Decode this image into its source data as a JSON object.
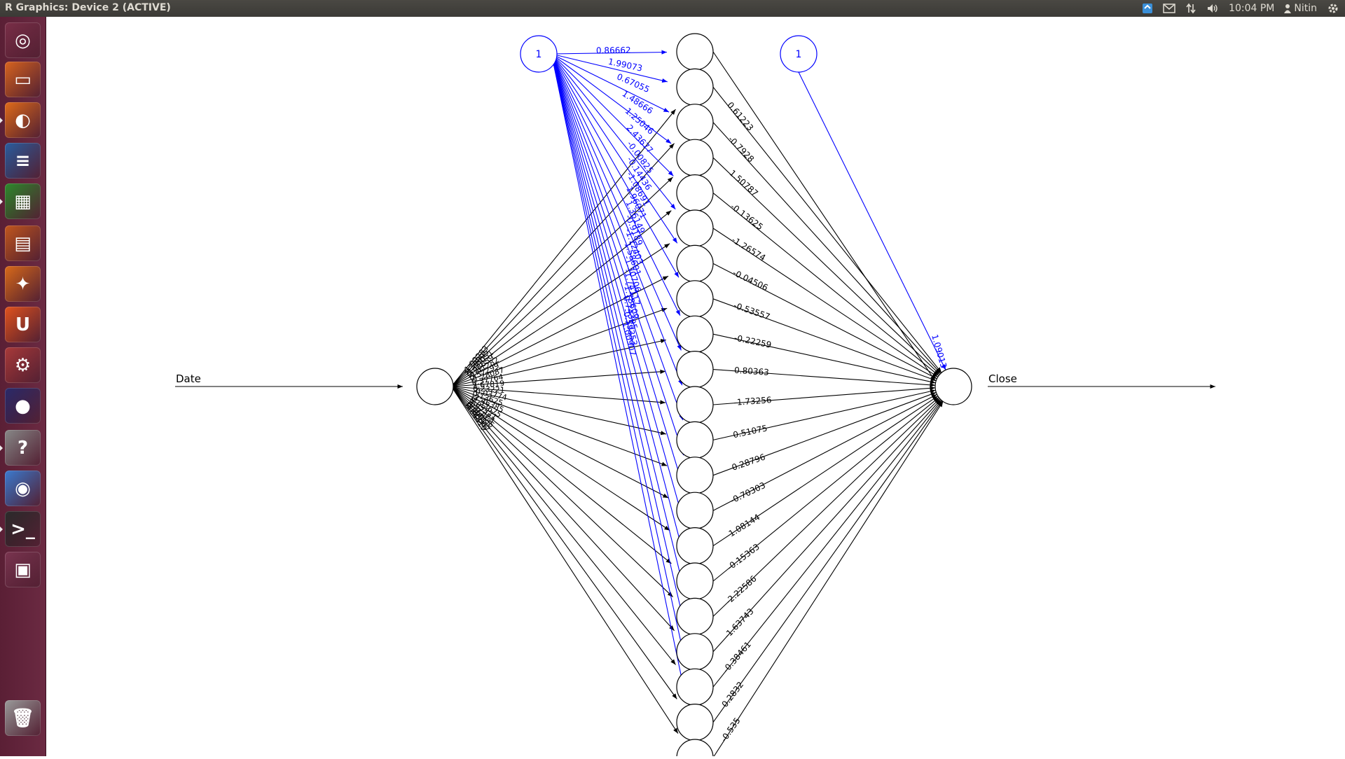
{
  "window": {
    "title": "R Graphics: Device 2 (ACTIVE)"
  },
  "tray": {
    "time": "10:04 PM",
    "user": "Nitin"
  },
  "launcher": [
    {
      "name": "dash-home-icon",
      "color": "#7a2f48",
      "glyph": "◎"
    },
    {
      "name": "files-icon",
      "color": "#d8641f",
      "glyph": "▭"
    },
    {
      "name": "firefox-icon",
      "color": "#e06b1a",
      "glyph": "◐"
    },
    {
      "name": "writer-icon",
      "color": "#2a5d9f",
      "glyph": "≡"
    },
    {
      "name": "calc-icon",
      "color": "#2c8a2c",
      "glyph": "▦"
    },
    {
      "name": "impress-icon",
      "color": "#c2571e",
      "glyph": "▤"
    },
    {
      "name": "software-center-icon",
      "color": "#d96a1a",
      "glyph": "✦"
    },
    {
      "name": "ubuntu-one-icon",
      "color": "#e2531e",
      "glyph": "U"
    },
    {
      "name": "system-settings-icon",
      "color": "#a93a3a",
      "glyph": "⚙"
    },
    {
      "name": "eclipse-icon",
      "color": "#2a2a6a",
      "glyph": "●"
    },
    {
      "name": "help-icon",
      "color": "#888888",
      "glyph": "?"
    },
    {
      "name": "chromium-icon",
      "color": "#3c7bd0",
      "glyph": "◉"
    },
    {
      "name": "terminal-icon",
      "color": "#2b2b2b",
      "glyph": ">_"
    },
    {
      "name": "workspace-switcher-icon",
      "color": "#7a3550",
      "glyph": "▣"
    },
    {
      "name": "trash-icon",
      "color": "#9a9a9a",
      "glyph": "🗑"
    }
  ],
  "nn": {
    "input_label": "Date",
    "output_label": "Close",
    "bias_label": "1",
    "hidden_count": 20,
    "bias_to_hidden": [
      "0.86662",
      "1.99073",
      "0.67055",
      "1.48666",
      "1.25046",
      "2.43677",
      "-0.00825",
      "-0.14436",
      "-1.08691",
      "1.96071",
      "1.36149",
      "-0.9189",
      "-1.72403",
      "1.58601",
      "-1.30706",
      "-1.74117",
      "-1.78609",
      "0.74395",
      "-0.59353",
      "1.00907"
    ],
    "hidden_to_output": [
      "0.61223",
      "-0.7928",
      "1.50787",
      "-0.13625",
      "-1.26574",
      "-0.04506",
      "-0.53557",
      "-0.22259",
      "0.80363",
      "-1.73256",
      "0.51075",
      "0.28796",
      "-0.70303",
      "1.08144",
      "-0.15363",
      "-2.22586",
      "-1.63743",
      "-0.38461",
      "0.2832",
      "-0.535"
    ],
    "input_to_hidden": [
      "-1.92283",
      "1.34895",
      "-1.64051",
      "0.93659",
      "-1.41282",
      "0.57299",
      "-1.28087",
      "0.37764",
      "1.67819",
      "0.23221",
      "-0.03774",
      "0.13625",
      "-2.46385",
      "-1.22675",
      "0.85521",
      "1.57373",
      "-0.33485",
      "0.99812",
      "-1.45567",
      "0.64419"
    ],
    "bias_to_output": "1.09013"
  }
}
